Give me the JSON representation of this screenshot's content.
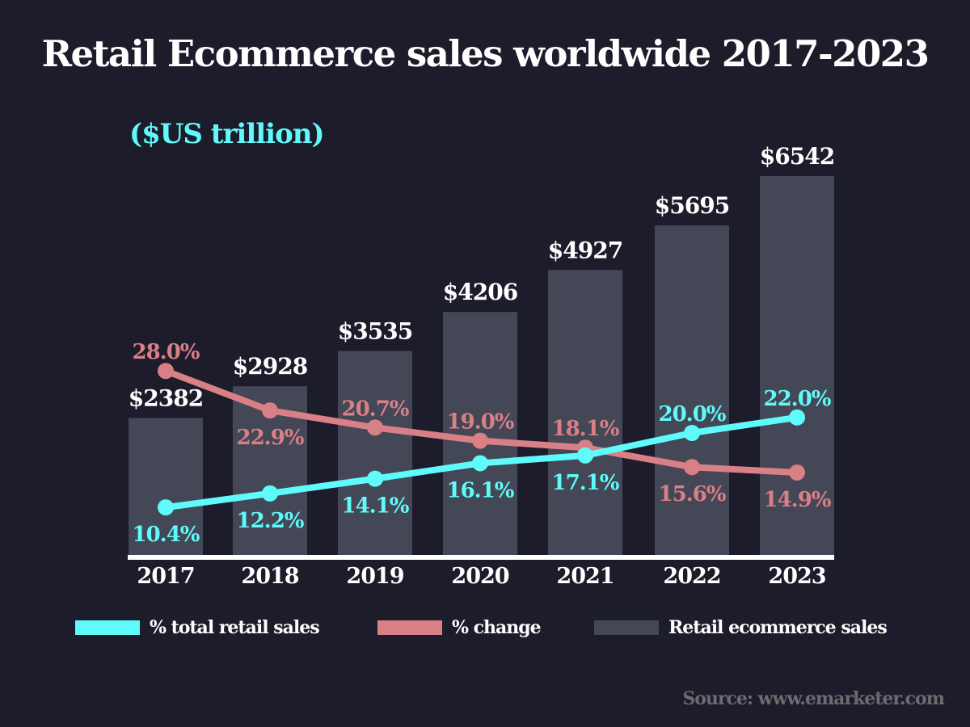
{
  "title": "Retail Ecommerce sales worldwide 2017-2023",
  "subtitle": "($US trillion)",
  "source": "Source: www.emarketer.com",
  "colors": {
    "background": "#1d1c2b",
    "bars": "#444756",
    "total_share": "#5ffbfb",
    "change": "#d97f86",
    "text": "#ffffff",
    "source": "#6b6b70"
  },
  "legend": [
    {
      "label": "% total retail sales",
      "color": "#5ffbfb"
    },
    {
      "label": "% change",
      "color": "#d97f86"
    },
    {
      "label": "Retail ecommerce sales",
      "color": "#444756"
    }
  ],
  "chart_data": {
    "type": "bar+line",
    "title": "Retail Ecommerce sales worldwide 2017-2023",
    "subtitle": "($US trillion)",
    "categories": [
      "2017",
      "2018",
      "2019",
      "2020",
      "2021",
      "2022",
      "2023"
    ],
    "series": [
      {
        "name": "Retail ecommerce sales",
        "type": "bar",
        "values": [
          2382,
          2928,
          3535,
          4206,
          4927,
          5695,
          6542
        ],
        "labels": [
          "$2382",
          "$2928",
          "$3535",
          "$4206",
          "$4927",
          "$5695",
          "$6542"
        ]
      },
      {
        "name": "% total retail sales",
        "type": "line",
        "values": [
          10.4,
          12.2,
          14.1,
          16.1,
          17.1,
          20.0,
          22.0
        ],
        "labels": [
          "10.4%",
          "12.2%",
          "14.1%",
          "16.1%",
          "17.1%",
          "20.0%",
          "22.0%"
        ]
      },
      {
        "name": "% change",
        "type": "line",
        "values": [
          28.0,
          22.9,
          20.7,
          19.0,
          18.1,
          15.6,
          14.9
        ],
        "labels": [
          "28.0%",
          "22.9%",
          "20.7%",
          "19.0%",
          "18.1%",
          "15.6%",
          "14.9%"
        ]
      }
    ],
    "grid": false,
    "legend_position": "bottom"
  }
}
